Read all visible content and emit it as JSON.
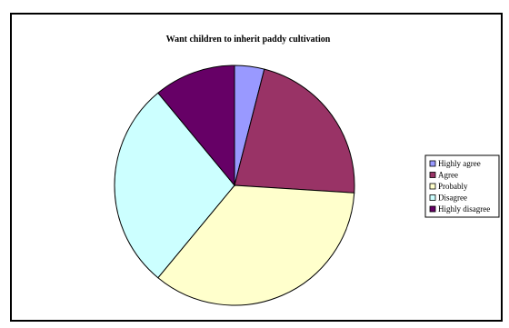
{
  "chart_data": {
    "type": "pie",
    "title": "Want children to inherit paddy cultivation",
    "categories": [
      "Highly agree",
      "Agree",
      "Probably",
      "Disagree",
      "Highly disagree"
    ],
    "values": [
      4,
      22,
      35,
      28,
      11
    ],
    "colors": [
      "#9999ff",
      "#993366",
      "#ffffcc",
      "#ccffff",
      "#660066"
    ],
    "start_angle_deg": 0,
    "direction": "clockwise",
    "legend": {
      "position": "right",
      "entries": [
        "Highly agree",
        "Agree",
        "Probably",
        "Disagree",
        "Highly disagree"
      ]
    }
  }
}
